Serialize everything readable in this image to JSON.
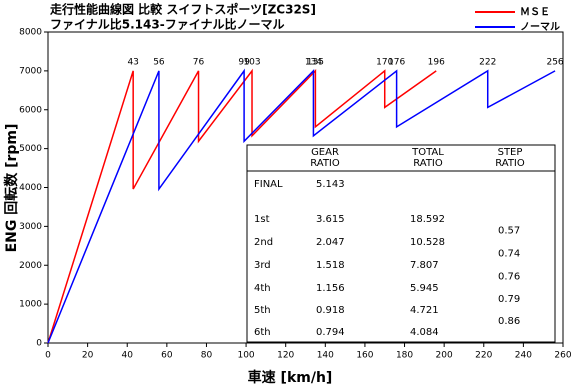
{
  "chart_data": {
    "type": "line",
    "title": "走行性能曲線図 比較 スイフトスポーツ[ZC32S]",
    "subtitle": "ファイナル比5.143-ファイナル比ノーマル",
    "x_label": "車速 [km/h]",
    "y_label": "ENG 回転数 [rpm]",
    "xlim": [
      0,
      260
    ],
    "xticks": [
      0,
      20,
      40,
      60,
      80,
      100,
      120,
      140,
      160,
      180,
      200,
      220,
      240,
      260
    ],
    "ylim": [
      0,
      8000
    ],
    "yticks": [
      0,
      1000,
      2000,
      3000,
      4000,
      5000,
      6000,
      7000,
      8000
    ],
    "legend": "upper right",
    "series": [
      {
        "name": "ＭＳＥ",
        "color": "#ff0000",
        "x": [
          0,
          43,
          43,
          76,
          76,
          103,
          103,
          135,
          135,
          170,
          170,
          196
        ],
        "values": [
          0,
          7000,
          3960,
          7000,
          5190,
          7000,
          5330,
          7000,
          5560,
          7000,
          6060,
          7000
        ]
      },
      {
        "name": "ノーマル",
        "color": "#0000ff",
        "x": [
          0,
          56,
          56,
          99,
          99,
          134,
          134,
          176,
          176,
          222,
          222,
          256
        ],
        "values": [
          0,
          7000,
          3960,
          7000,
          5190,
          7000,
          5330,
          7000,
          5560,
          7000,
          6060,
          7000
        ]
      }
    ]
  },
  "table": {
    "header": [
      [
        "GEAR",
        "RATIO"
      ],
      [
        "TOTAL",
        "RATIO"
      ],
      [
        "STEP",
        "RATIO"
      ]
    ],
    "rows": [
      [
        "FINAL",
        "5.143",
        ""
      ],
      [
        "1st",
        "3.615",
        "18.592"
      ],
      [
        "2nd",
        "2.047",
        "10.528"
      ],
      [
        "3rd",
        "1.518",
        "7.807"
      ],
      [
        "4th",
        "1.156",
        "5.945"
      ],
      [
        "5th",
        "0.918",
        "4.721"
      ],
      [
        "6th",
        "0.794",
        "4.084"
      ]
    ],
    "step": [
      "0.57",
      "0.74",
      "0.76",
      "0.79",
      "0.86"
    ]
  }
}
